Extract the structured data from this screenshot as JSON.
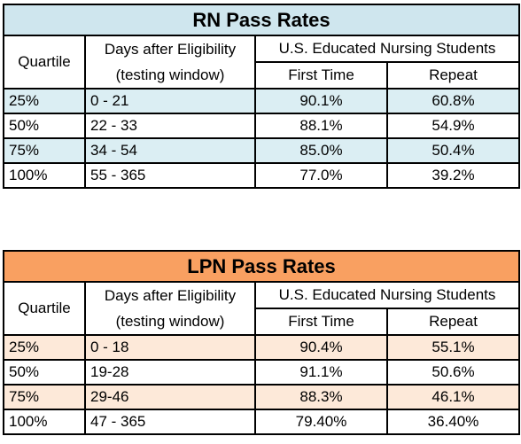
{
  "rn": {
    "title": "RN Pass Rates",
    "header": {
      "quartile": "Quartile",
      "days_line1": "Days after Eligibility",
      "days_line2": "(testing window)",
      "group": "U.S. Educated Nursing Students",
      "first": "First Time",
      "repeat": "Repeat"
    },
    "rows": [
      {
        "quartile": "25%",
        "days": "0 - 21",
        "first": "90.1%",
        "repeat": "60.8%"
      },
      {
        "quartile": "50%",
        "days": "22 - 33",
        "first": "88.1%",
        "repeat": "54.9%"
      },
      {
        "quartile": "75%",
        "days": "34 - 54",
        "first": "85.0%",
        "repeat": "50.4%"
      },
      {
        "quartile": "100%",
        "days": "55 - 365",
        "first": "77.0%",
        "repeat": "39.2%"
      }
    ]
  },
  "lpn": {
    "title": "LPN Pass Rates",
    "header": {
      "quartile": "Quartile",
      "days_line1": "Days after Eligibility",
      "days_line2": "(testing window)",
      "group": "U.S. Educated Nursing Students",
      "first": "First Time",
      "repeat": "Repeat"
    },
    "rows": [
      {
        "quartile": "25%",
        "days": "0 - 18",
        "first": "90.4%",
        "repeat": "55.1%"
      },
      {
        "quartile": "50%",
        "days": "19-28",
        "first": "91.1%",
        "repeat": "50.6%"
      },
      {
        "quartile": "75%",
        "days": "29-46",
        "first": "88.3%",
        "repeat": "46.1%"
      },
      {
        "quartile": "100%",
        "days": "47 - 365",
        "first": "79.40%",
        "repeat": "36.40%"
      }
    ]
  },
  "colors": {
    "rn_title_bg": "#cfe6ee",
    "rn_shade": "#dbeef3",
    "lpn_title_bg": "#f9a061",
    "lpn_shade": "#fde9d9"
  }
}
